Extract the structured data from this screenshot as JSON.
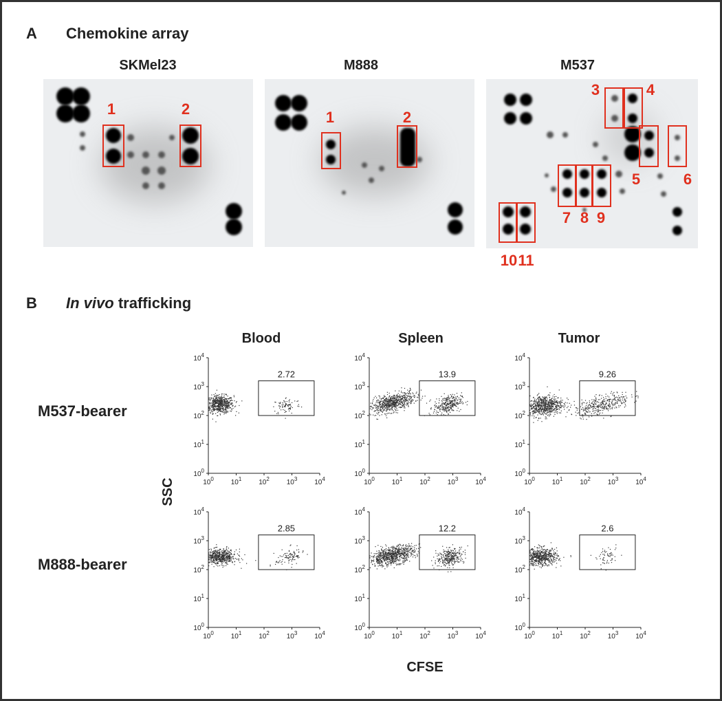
{
  "panel_a": {
    "label": "A",
    "title": "Chemokine array",
    "arrays": [
      {
        "name": "SKMel23",
        "boxes": [
          "1",
          "2"
        ]
      },
      {
        "name": "M888",
        "boxes": [
          "1",
          "2"
        ]
      },
      {
        "name": "M537",
        "boxes": [
          "3",
          "4",
          "5",
          "6",
          "7",
          "8",
          "9",
          "10",
          "11"
        ]
      }
    ]
  },
  "panel_b": {
    "label": "B",
    "title_italic": "In vivo",
    "title_rest": "trafficking",
    "columns": [
      "Blood",
      "Spleen",
      "Tumor"
    ],
    "rows": [
      {
        "name": "M537-bearer",
        "gates": [
          2.72,
          13.9,
          9.26
        ]
      },
      {
        "name": "M888-bearer",
        "gates": [
          2.85,
          12.2,
          2.6
        ]
      }
    ],
    "y_axis_label": "SSC",
    "x_axis_label": "CFSE",
    "tick_base": "10",
    "tick_exponents": [
      "0",
      "1",
      "2",
      "3",
      "4"
    ]
  }
}
